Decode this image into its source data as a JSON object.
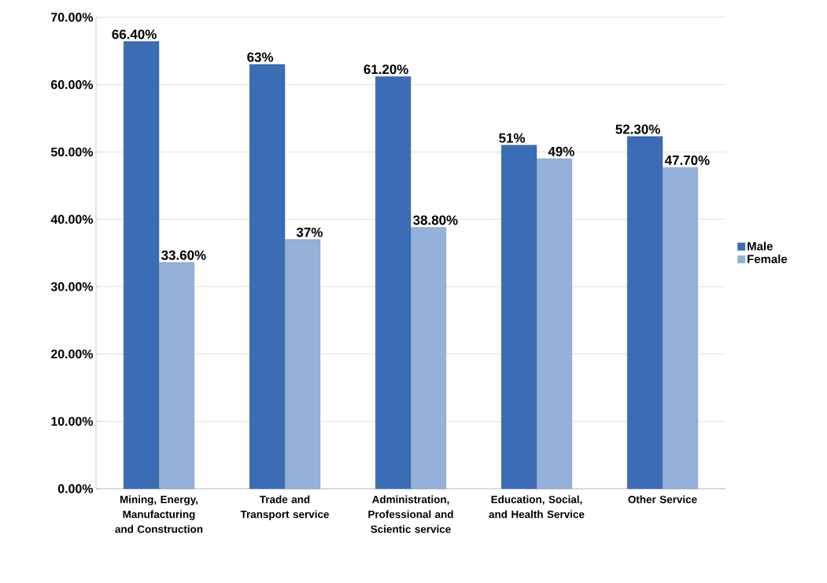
{
  "chart_data": {
    "type": "bar",
    "categories": [
      "Mining, Energy, Manufacturing and Construction",
      "Trade and Transport service",
      "Administration, Professional and Scientic service",
      "Education, Social, and Health Service",
      "Other Service"
    ],
    "series": [
      {
        "name": "Male",
        "color": "#3a6db5",
        "values": [
          66.4,
          63,
          61.2,
          51,
          52.3
        ],
        "value_labels": [
          "66.40%",
          "63%",
          "61.20%",
          "51%",
          "52.30%"
        ]
      },
      {
        "name": "Female",
        "color": "#93b1da",
        "values": [
          33.6,
          37,
          38.8,
          49,
          47.7
        ],
        "value_labels": [
          "33.60%",
          "37%",
          "38.80%",
          "49%",
          "47.70%"
        ]
      }
    ],
    "ylim": [
      0,
      70
    ],
    "yticks": [
      {
        "value": 0,
        "label": "0.00%"
      },
      {
        "value": 10,
        "label": "10.00%"
      },
      {
        "value": 20,
        "label": "20.00%"
      },
      {
        "value": 30,
        "label": "30.00%"
      },
      {
        "value": 40,
        "label": "40.00%"
      },
      {
        "value": 50,
        "label": "50.00%"
      },
      {
        "value": 60,
        "label": "60.00%"
      },
      {
        "value": 70,
        "label": "70.00%"
      }
    ],
    "grid": "y",
    "legend": "right"
  }
}
